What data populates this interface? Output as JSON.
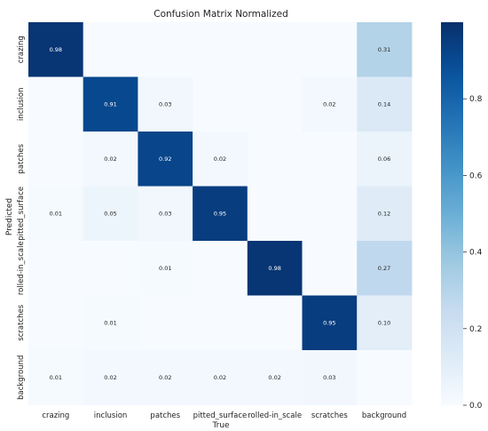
{
  "chart_data": {
    "type": "heatmap",
    "title": "Confusion Matrix Normalized",
    "xlabel": "True",
    "ylabel": "Predicted",
    "x_categories": [
      "crazing",
      "inclusion",
      "patches",
      "pitted_surface",
      "rolled-in_scale",
      "scratches",
      "background"
    ],
    "y_categories": [
      "crazing",
      "inclusion",
      "patches",
      "pitted_surface",
      "rolled-in_scale",
      "scratches",
      "background"
    ],
    "values": [
      [
        0.98,
        null,
        null,
        null,
        null,
        null,
        0.31
      ],
      [
        null,
        0.91,
        0.03,
        null,
        null,
        0.02,
        0.14
      ],
      [
        null,
        0.02,
        0.92,
        0.02,
        null,
        null,
        0.06
      ],
      [
        0.01,
        0.05,
        0.03,
        0.95,
        null,
        null,
        0.12
      ],
      [
        null,
        null,
        0.01,
        null,
        0.98,
        null,
        0.27
      ],
      [
        null,
        0.01,
        null,
        null,
        null,
        0.95,
        0.1
      ],
      [
        0.01,
        0.02,
        0.02,
        0.02,
        0.02,
        0.03,
        null
      ]
    ],
    "cell_labels": [
      [
        "0.98",
        "",
        "",
        "",
        "",
        "",
        "0.31"
      ],
      [
        "",
        "0.91",
        "0.03",
        "",
        "",
        "0.02",
        "0.14"
      ],
      [
        "",
        "0.02",
        "0.92",
        "0.02",
        "",
        "",
        "0.06"
      ],
      [
        "0.01",
        "0.05",
        "0.03",
        "0.95",
        "",
        "",
        "0.12"
      ],
      [
        "",
        "",
        "0.01",
        "",
        "0.98",
        "",
        "0.27"
      ],
      [
        "",
        "0.01",
        "",
        "",
        "",
        "0.95",
        "0.10"
      ],
      [
        "0.01",
        "0.02",
        "0.02",
        "0.02",
        "0.02",
        "0.03",
        ""
      ]
    ],
    "vmin": 0.0,
    "vmax": 1.0,
    "colormap": "Blues",
    "colorbar_ticks": [
      0.0,
      0.2,
      0.4,
      0.6,
      0.8
    ],
    "colorbar_tick_labels": [
      "0.0",
      "0.2",
      "0.4",
      "0.6",
      "0.8"
    ],
    "colors": {
      "low": "#f7fbff",
      "high": "#08306b",
      "text_dark": "#222222",
      "text_light": "#ffffff"
    }
  }
}
